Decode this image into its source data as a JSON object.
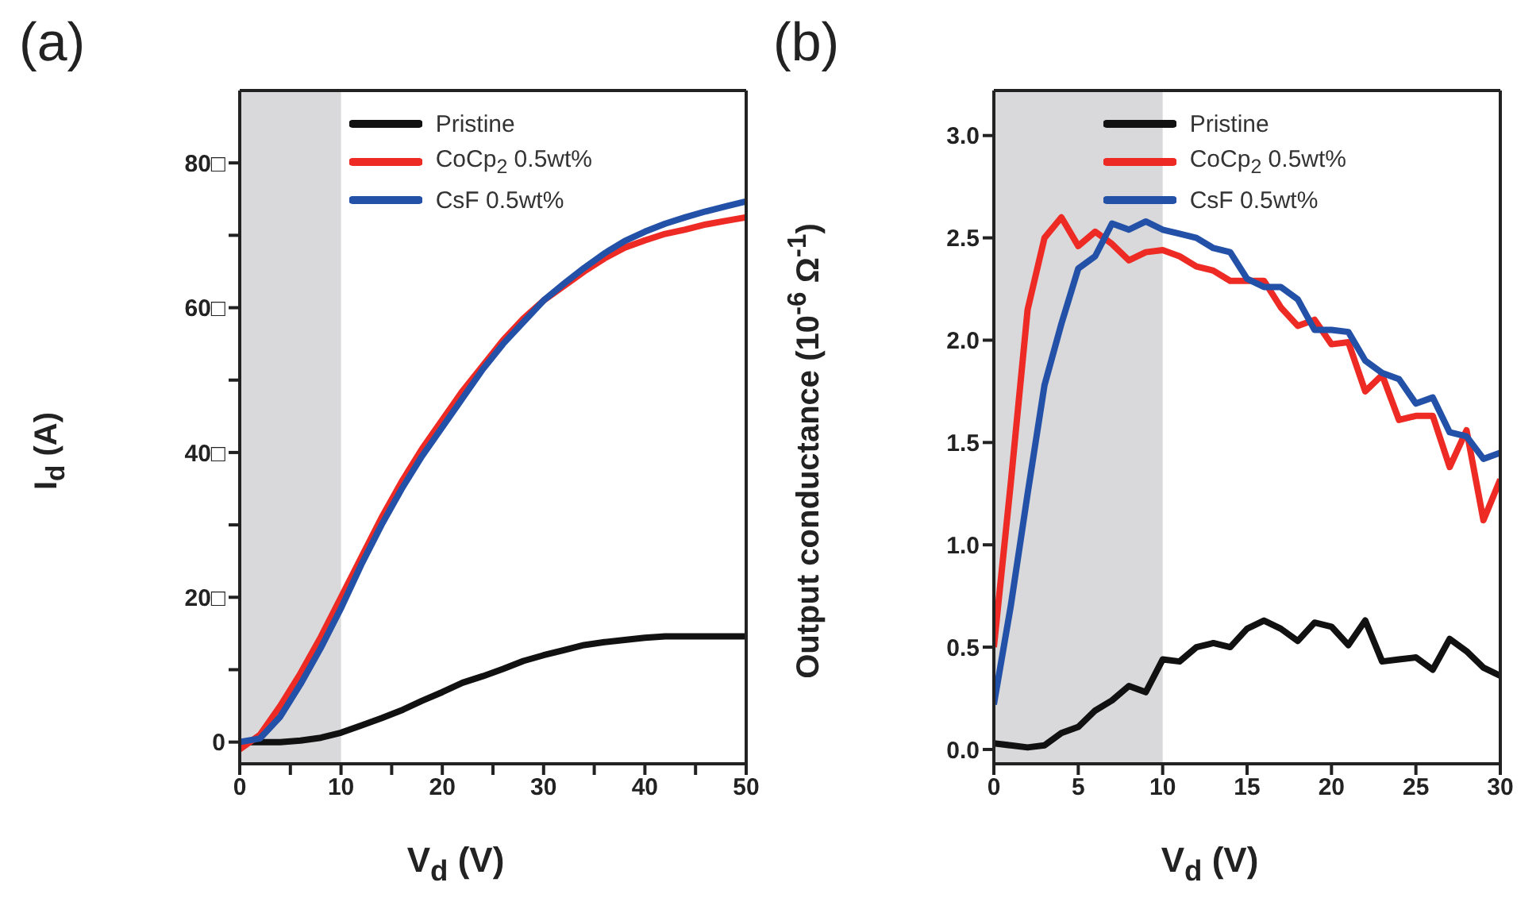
{
  "chart_data": [
    {
      "type": "line",
      "title": "(a)",
      "xlabel": "V$_{d}$ (V)",
      "ylabel": "I$_{d}$ (A)",
      "x": [
        0,
        2,
        4,
        6,
        8,
        10,
        12,
        14,
        16,
        18,
        20,
        22,
        24,
        26,
        28,
        30,
        32,
        34,
        36,
        38,
        40,
        42,
        44,
        46,
        48,
        50
      ],
      "series": [
        {
          "name": "Pristine",
          "color": "#111111",
          "values": [
            0,
            0,
            0,
            0.2,
            0.6,
            1.3,
            2.3,
            3.3,
            4.4,
            5.7,
            6.9,
            8.2,
            9.1,
            10.1,
            11.2,
            12,
            12.7,
            13.4,
            13.8,
            14.1,
            14.4,
            14.6,
            14.6,
            14.6,
            14.6,
            14.6
          ]
        },
        {
          "name": "CoCp$_{2}$ 0.5wt%",
          "color": "#ee2a24",
          "values": [
            -1,
            1,
            5,
            9.5,
            14.5,
            20,
            25.5,
            31,
            36,
            40.5,
            44.5,
            48.5,
            52,
            55.5,
            58.5,
            61,
            63,
            65,
            66.8,
            68.3,
            69.3,
            70.2,
            70.8,
            71.5,
            72,
            72.5
          ]
        },
        {
          "name": "CsF 0.5wt%",
          "color": "#2451a8",
          "values": [
            0,
            0.5,
            3.5,
            8,
            13,
            18.5,
            24.5,
            30,
            35,
            39.5,
            43.5,
            47.5,
            51.5,
            55,
            58,
            61,
            63.3,
            65.5,
            67.5,
            69.2,
            70.5,
            71.6,
            72.5,
            73.3,
            74,
            74.7
          ]
        }
      ],
      "xlim": [
        0,
        50
      ],
      "xticks": [
        0,
        {
          "value": 5,
          "label": null
        },
        10,
        {
          "value": 15,
          "label": null
        },
        20,
        {
          "value": 25,
          "label": null
        },
        30,
        {
          "value": 35,
          "label": null
        },
        40,
        {
          "value": 45,
          "label": null
        },
        50
      ],
      "ylim": [
        -3,
        90
      ],
      "yticks": [
        {
          "value": 0,
          "label": "0"
        },
        {
          "value": 10,
          "label": null
        },
        {
          "value": 20,
          "label": "20□"
        },
        {
          "value": 30,
          "label": null
        },
        {
          "value": 40,
          "label": "40□"
        },
        {
          "value": 50,
          "label": null
        },
        {
          "value": 60,
          "label": "60□"
        },
        {
          "value": 70,
          "label": null
        },
        {
          "value": 80,
          "label": "80□"
        }
      ],
      "bands": [
        {
          "axis": "x",
          "from": 0,
          "to": 10,
          "color": "#d9d9db"
        }
      ],
      "legend": "top right",
      "grid": false,
      "marker": "none",
      "line_style": "solid"
    },
    {
      "type": "line",
      "title": "(b)",
      "xlabel": "V$_{d}$ (V)",
      "ylabel": "Output conductance (10$^{-6}$ Ω$^{-1}$)",
      "x": [
        0,
        1,
        2,
        3,
        4,
        5,
        6,
        7,
        8,
        9,
        10,
        11,
        12,
        13,
        14,
        15,
        16,
        17,
        18,
        19,
        20,
        21,
        22,
        23,
        24,
        25,
        26,
        27,
        28,
        29,
        30
      ],
      "series": [
        {
          "name": "Pristine",
          "color": "#111111",
          "values": [
            0.03,
            0.02,
            0.01,
            0.02,
            0.08,
            0.11,
            0.19,
            0.24,
            0.31,
            0.28,
            0.44,
            0.43,
            0.5,
            0.52,
            0.5,
            0.59,
            0.63,
            0.59,
            0.53,
            0.62,
            0.6,
            0.51,
            0.63,
            0.43,
            0.44,
            0.45,
            0.39,
            0.54,
            0.48,
            0.4,
            0.36
          ]
        },
        {
          "name": "CoCp$_{2}$ 0.5wt%",
          "color": "#ee2a24",
          "values": [
            0.5,
            1.3,
            2.15,
            2.5,
            2.6,
            2.46,
            2.53,
            2.47,
            2.39,
            2.43,
            2.44,
            2.41,
            2.36,
            2.34,
            2.29,
            2.29,
            2.29,
            2.16,
            2.07,
            2.1,
            1.98,
            1.99,
            1.75,
            1.83,
            1.61,
            1.63,
            1.63,
            1.38,
            1.56,
            1.12,
            1.32
          ]
        },
        {
          "name": "CsF 0.5wt%",
          "color": "#2451a8",
          "values": [
            0.22,
            0.7,
            1.25,
            1.78,
            2.08,
            2.35,
            2.41,
            2.57,
            2.54,
            2.58,
            2.54,
            2.52,
            2.5,
            2.45,
            2.43,
            2.3,
            2.26,
            2.26,
            2.2,
            2.05,
            2.05,
            2.04,
            1.9,
            1.84,
            1.81,
            1.69,
            1.72,
            1.55,
            1.53,
            1.42,
            1.45
          ]
        }
      ],
      "xlim": [
        0,
        30
      ],
      "xticks": [
        0,
        5,
        10,
        15,
        20,
        25,
        30
      ],
      "ylim": [
        -0.07,
        3.22
      ],
      "yticks": [
        {
          "value": 0,
          "label": "0.0"
        },
        {
          "value": 0.5,
          "label": "0.5"
        },
        {
          "value": 1,
          "label": "1.0"
        },
        {
          "value": 1.5,
          "label": "1.5"
        },
        {
          "value": 2,
          "label": "2.0"
        },
        {
          "value": 2.5,
          "label": "2.5"
        },
        {
          "value": 3,
          "label": "3.0"
        }
      ],
      "bands": [
        {
          "axis": "x",
          "from": 0,
          "to": 10,
          "color": "#d9d9db"
        }
      ],
      "legend": "top right",
      "grid": false,
      "marker": "none",
      "line_style": "solid"
    }
  ]
}
